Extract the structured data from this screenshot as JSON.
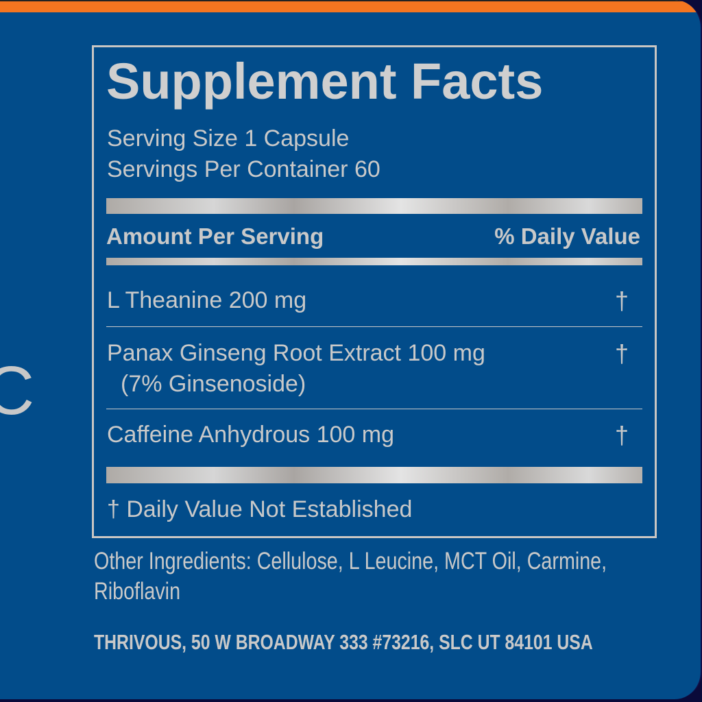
{
  "colors": {
    "background": "#024c8a",
    "top_band": "#f47520",
    "text": "#c9c9c9"
  },
  "partial_letter": "C",
  "facts": {
    "title": "Supplement Facts",
    "serving_size": "Serving Size 1 Capsule",
    "servings_per_container": "Servings Per Container 60",
    "header_amount": "Amount Per Serving",
    "header_dv": "% Daily Value",
    "rows": [
      {
        "name": "L Theanine 200 mg",
        "sub": "",
        "dv": "†"
      },
      {
        "name": "Panax Ginseng Root Extract 100 mg",
        "sub": "(7% Ginsenoside)",
        "dv": "†"
      },
      {
        "name": "Caffeine Anhydrous 100 mg",
        "sub": "",
        "dv": "†"
      }
    ],
    "footnote": "† Daily Value Not Established"
  },
  "other_ingredients": {
    "line1": "Other Ingredients: Cellulose, L Leucine, MCT Oil, Carmine,",
    "line2": "Riboflavin"
  },
  "address": "THRIVOUS, 50 W BROADWAY 333 #73216, SLC UT 84101 USA"
}
